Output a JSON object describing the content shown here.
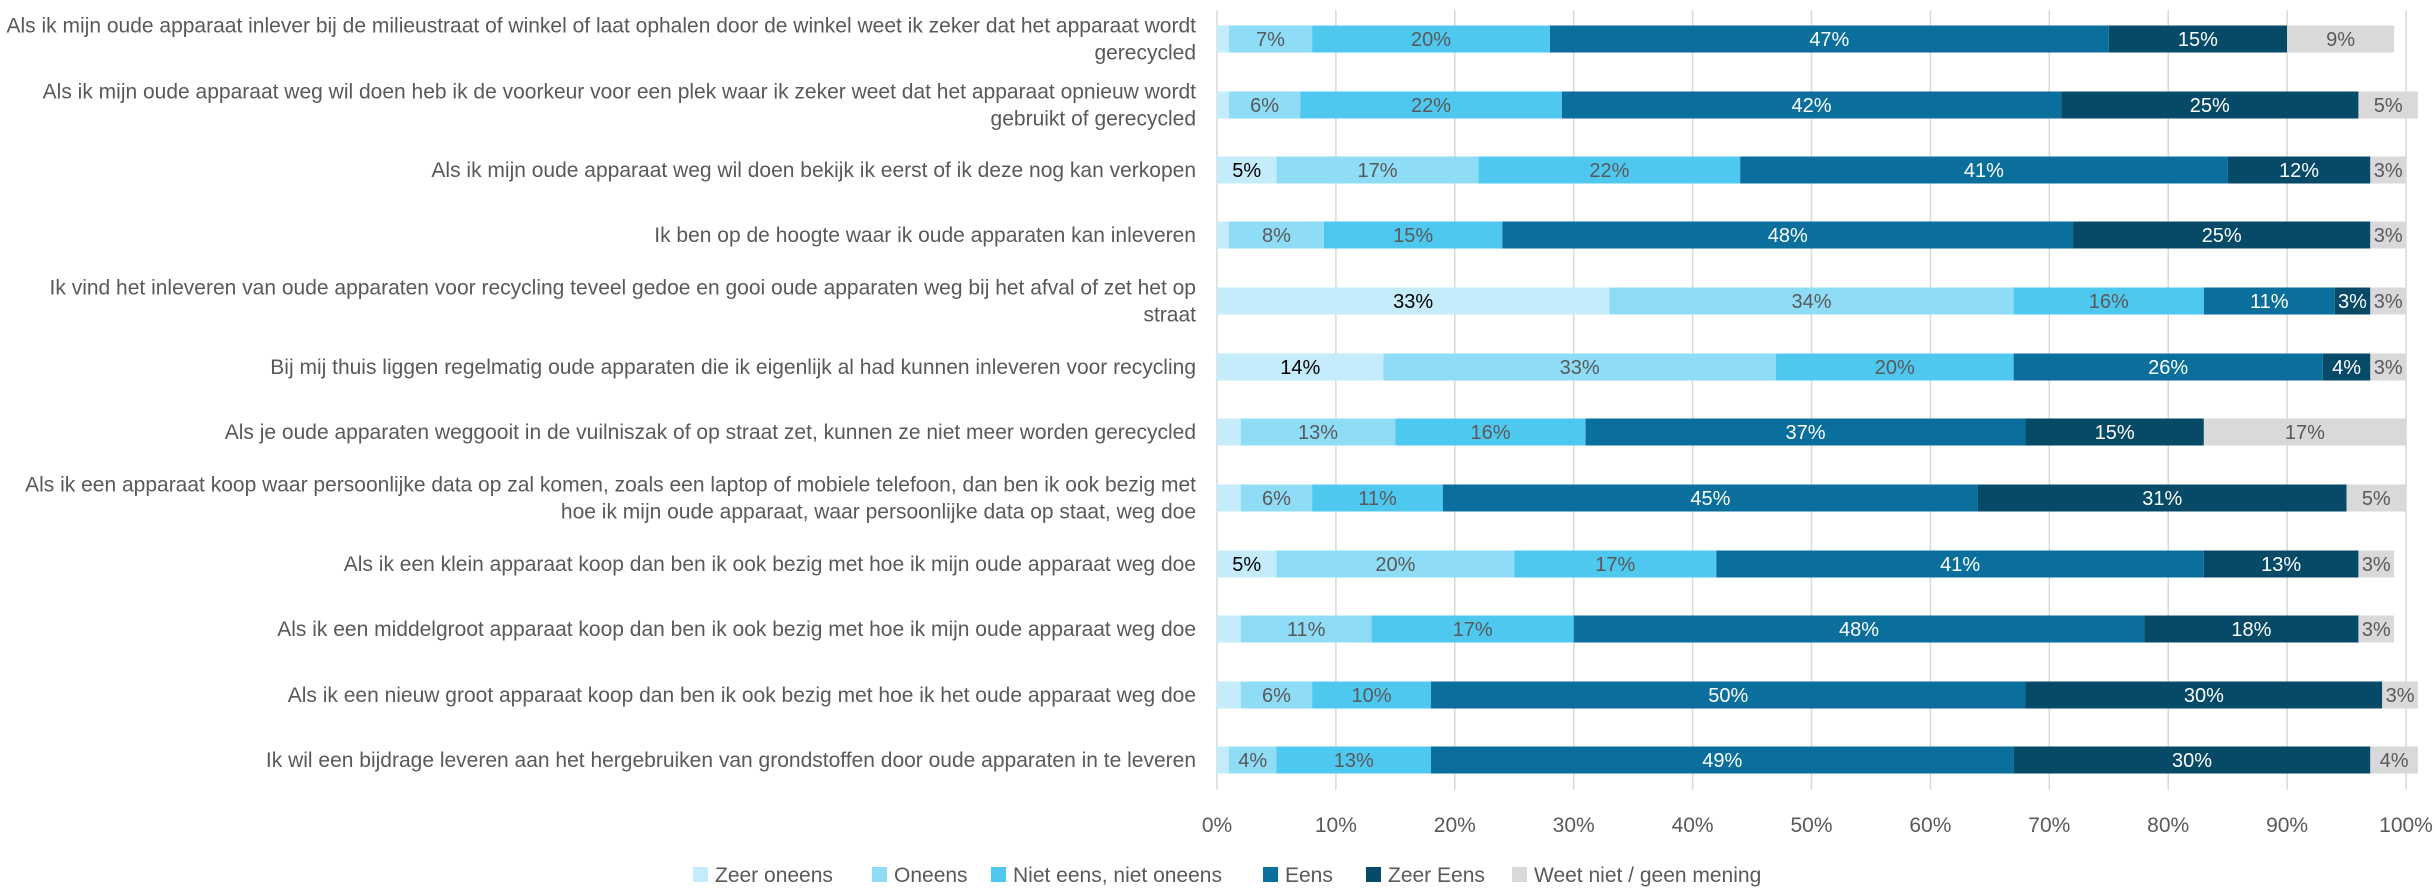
{
  "chart_data": {
    "type": "bar",
    "orientation": "horizontal",
    "stacked": true,
    "percent_stacked": true,
    "categories": [
      "Als ik mijn oude apparaat inlever bij de milieustraat of winkel of laat ophalen door de winkel weet ik zeker dat het apparaat wordt gerecycled",
      "Als ik mijn oude apparaat weg wil doen heb ik de voorkeur voor een plek waar ik zeker weet dat het apparaat opnieuw wordt gebruikt of gerecycled",
      "Als ik mijn oude apparaat weg wil doen bekijk ik eerst of ik deze nog kan verkopen",
      "Ik ben op de hoogte waar ik oude apparaten kan inleveren",
      "Ik vind het inleveren van oude apparaten voor recycling teveel gedoe en gooi oude apparaten weg bij het afval of zet het op straat",
      "Bij mij thuis liggen regelmatig oude apparaten die ik eigenlijk al had kunnen inleveren voor recycling",
      "Als je oude apparaten weggooit in de vuilniszak of op straat zet, kunnen ze niet meer worden gerecycled",
      "Als ik een apparaat koop waar persoonlijke data op zal komen, zoals een laptop of mobiele telefoon, dan ben ik ook bezig met hoe ik mijn oude apparaat, waar persoonlijke data op staat, weg doe",
      "Als ik een klein apparaat koop dan ben ik ook bezig met hoe ik mijn oude apparaat weg doe",
      "Als ik een middelgroot apparaat koop dan ben ik ook bezig met hoe ik mijn oude apparaat weg doe",
      "Als ik een nieuw groot apparaat koop dan ben ik ook bezig met hoe ik het oude apparaat weg doe",
      "Ik wil een bijdrage leveren aan het hergebruiken van grondstoffen door oude apparaten in te leveren"
    ],
    "series": [
      {
        "name": "Zeer oneens",
        "color": "#c5ecfb",
        "values": [
          1,
          1,
          5,
          1,
          33,
          14,
          2,
          2,
          5,
          2,
          2,
          1
        ],
        "labels": [
          "",
          "",
          "5%",
          "",
          "33%",
          "14%",
          "",
          "",
          "5%",
          "",
          "",
          ""
        ]
      },
      {
        "name": "Oneens",
        "color": "#8fdcf7",
        "values": [
          7,
          6,
          17,
          8,
          34,
          33,
          13,
          6,
          20,
          11,
          6,
          4
        ],
        "labels": [
          "7%",
          "6%",
          "17%",
          "8%",
          "34%",
          "33%",
          "13%",
          "6%",
          "20%",
          "11%",
          "6%",
          "4%"
        ]
      },
      {
        "name": "Niet eens, niet oneens",
        "color": "#4fc8f0",
        "values": [
          20,
          22,
          22,
          15,
          16,
          20,
          16,
          11,
          17,
          17,
          10,
          13
        ],
        "labels": [
          "20%",
          "22%",
          "22%",
          "15%",
          "16%",
          "20%",
          "16%",
          "11%",
          "17%",
          "17%",
          "10%",
          "13%"
        ]
      },
      {
        "name": "Eens",
        "color": "#0a6f9c",
        "values": [
          47,
          42,
          41,
          48,
          11,
          26,
          37,
          45,
          41,
          48,
          50,
          49
        ],
        "labels": [
          "47%",
          "42%",
          "41%",
          "48%",
          "11%",
          "26%",
          "37%",
          "45%",
          "41%",
          "48%",
          "50%",
          "49%"
        ]
      },
      {
        "name": "Zeer Eens",
        "color": "#064a68",
        "values": [
          15,
          25,
          12,
          25,
          3,
          4,
          15,
          31,
          13,
          18,
          30,
          30
        ],
        "labels": [
          "15%",
          "25%",
          "12%",
          "25%",
          "3%",
          "4%",
          "15%",
          "31%",
          "13%",
          "18%",
          "30%",
          "30%"
        ]
      },
      {
        "name": "Weet niet / geen mening",
        "color": "#d9d9d9",
        "values": [
          9,
          5,
          3,
          3,
          3,
          3,
          17,
          5,
          3,
          3,
          3,
          4
        ],
        "labels": [
          "9%",
          "5%",
          "3%",
          "3%",
          "3%",
          "3%",
          "17%",
          "5%",
          "3%",
          "3%",
          "3%",
          "4%"
        ]
      }
    ],
    "xlim": [
      0,
      100
    ],
    "xticks": [
      "0%",
      "10%",
      "20%",
      "30%",
      "40%",
      "50%",
      "60%",
      "70%",
      "80%",
      "90%",
      "100%"
    ],
    "grid": true,
    "legend": "bottom"
  }
}
